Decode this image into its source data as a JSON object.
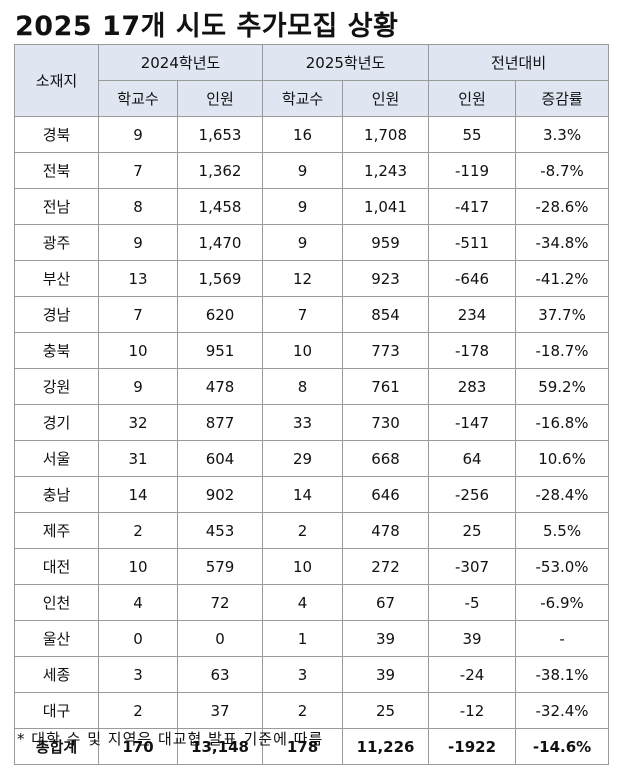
{
  "title": "2025 17개 시도 추가모집 상황",
  "header": {
    "region": "소재지",
    "group_2024": "2024학년도",
    "group_2025": "2025학년도",
    "group_change": "전년대비",
    "schools": "학교수",
    "people": "인원",
    "change_people": "인원",
    "rate": "증감률"
  },
  "rows": [
    {
      "region": "경북",
      "s24": "9",
      "p24": "1,653",
      "s25": "16",
      "p25": "1,708",
      "diff": "55",
      "rate": "3.3%"
    },
    {
      "region": "전북",
      "s24": "7",
      "p24": "1,362",
      "s25": "9",
      "p25": "1,243",
      "diff": "-119",
      "rate": "-8.7%"
    },
    {
      "region": "전남",
      "s24": "8",
      "p24": "1,458",
      "s25": "9",
      "p25": "1,041",
      "diff": "-417",
      "rate": "-28.6%"
    },
    {
      "region": "광주",
      "s24": "9",
      "p24": "1,470",
      "s25": "9",
      "p25": "959",
      "diff": "-511",
      "rate": "-34.8%"
    },
    {
      "region": "부산",
      "s24": "13",
      "p24": "1,569",
      "s25": "12",
      "p25": "923",
      "diff": "-646",
      "rate": "-41.2%"
    },
    {
      "region": "경남",
      "s24": "7",
      "p24": "620",
      "s25": "7",
      "p25": "854",
      "diff": "234",
      "rate": "37.7%"
    },
    {
      "region": "충북",
      "s24": "10",
      "p24": "951",
      "s25": "10",
      "p25": "773",
      "diff": "-178",
      "rate": "-18.7%"
    },
    {
      "region": "강원",
      "s24": "9",
      "p24": "478",
      "s25": "8",
      "p25": "761",
      "diff": "283",
      "rate": "59.2%"
    },
    {
      "region": "경기",
      "s24": "32",
      "p24": "877",
      "s25": "33",
      "p25": "730",
      "diff": "-147",
      "rate": "-16.8%"
    },
    {
      "region": "서울",
      "s24": "31",
      "p24": "604",
      "s25": "29",
      "p25": "668",
      "diff": "64",
      "rate": "10.6%"
    },
    {
      "region": "충남",
      "s24": "14",
      "p24": "902",
      "s25": "14",
      "p25": "646",
      "diff": "-256",
      "rate": "-28.4%"
    },
    {
      "region": "제주",
      "s24": "2",
      "p24": "453",
      "s25": "2",
      "p25": "478",
      "diff": "25",
      "rate": "5.5%"
    },
    {
      "region": "대전",
      "s24": "10",
      "p24": "579",
      "s25": "10",
      "p25": "272",
      "diff": "-307",
      "rate": "-53.0%"
    },
    {
      "region": "인천",
      "s24": "4",
      "p24": "72",
      "s25": "4",
      "p25": "67",
      "diff": "-5",
      "rate": "-6.9%"
    },
    {
      "region": "울산",
      "s24": "0",
      "p24": "0",
      "s25": "1",
      "p25": "39",
      "diff": "39",
      "rate": "-"
    },
    {
      "region": "세종",
      "s24": "3",
      "p24": "63",
      "s25": "3",
      "p25": "39",
      "diff": "-24",
      "rate": "-38.1%"
    },
    {
      "region": "대구",
      "s24": "2",
      "p24": "37",
      "s25": "2",
      "p25": "25",
      "diff": "-12",
      "rate": "-32.4%"
    }
  ],
  "total": {
    "region": "총합계",
    "s24": "170",
    "p24": "13,148",
    "s25": "178",
    "p25": "11,226",
    "diff": "-1922",
    "rate": "-14.6%"
  },
  "note": "* 대학 수 및 지역은 대교협 발표 기준에 따름",
  "colors": {
    "header_bg": "#dfe6f2",
    "border": "#9a9a9a"
  }
}
